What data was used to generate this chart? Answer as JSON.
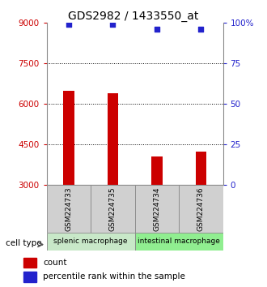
{
  "title": "GDS2982 / 1433550_at",
  "samples": [
    "GSM224733",
    "GSM224735",
    "GSM224734",
    "GSM224736"
  ],
  "counts": [
    6500,
    6400,
    4050,
    4250
  ],
  "percentiles": [
    99,
    99,
    96,
    96
  ],
  "ylim_left": [
    3000,
    9000
  ],
  "ylim_right": [
    0,
    100
  ],
  "yticks_left": [
    3000,
    4500,
    6000,
    7500,
    9000
  ],
  "yticks_right": [
    0,
    25,
    50,
    75,
    100
  ],
  "ytick_labels_right": [
    "0",
    "25",
    "50",
    "75",
    "100%"
  ],
  "dotted_lines": [
    4500,
    6000,
    7500
  ],
  "bar_color": "#cc0000",
  "scatter_color": "#2222cc",
  "groups": [
    {
      "label": "splenic macrophage",
      "samples": [
        0,
        1
      ],
      "color": "#c8e8c8"
    },
    {
      "label": "intestinal macrophage",
      "samples": [
        2,
        3
      ],
      "color": "#90ee90"
    }
  ],
  "sample_box_color": "#d0d0d0",
  "cell_type_label": "cell type",
  "legend_count_label": "count",
  "legend_pct_label": "percentile rank within the sample",
  "title_fontsize": 10,
  "axis_label_color_left": "#cc0000",
  "axis_label_color_right": "#2222cc",
  "bar_width": 0.25
}
